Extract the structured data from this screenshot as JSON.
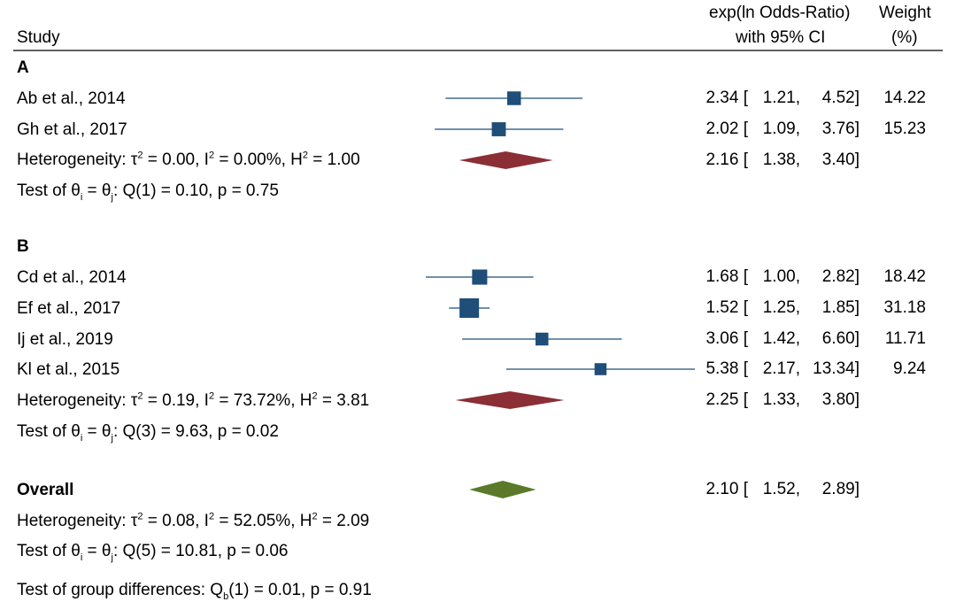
{
  "header": {
    "study_label": "Study",
    "effect_label_line1": "exp(ln Odds-Ratio)",
    "effect_label_line2": "with 95% CI",
    "weight_label_line1": "Weight",
    "weight_label_line2": "(%)"
  },
  "footer": {
    "group_diff_text": "Test of group differences: Q",
    "group_diff_sub": "b",
    "group_diff_rest": "(1) = 0.01, p = 0.91"
  },
  "colors": {
    "study_marker": "#1f4e79",
    "subgroup_diamond": "#8b2e35",
    "overall_diamond": "#5a7a2a"
  },
  "chart_data": {
    "type": "forest",
    "x_scale": "log",
    "xlim": [
      0.9,
      13.34
    ],
    "groups": [
      {
        "label": "A",
        "studies": [
          {
            "name": "Ab et al., 2014",
            "est": 2.34,
            "lo": 1.21,
            "hi": 4.52,
            "est_text": "2.34 [",
            "lo_text": "1.21,",
            "hi_text": "4.52]",
            "weight": 14.22,
            "weight_text": "14.22"
          },
          {
            "name": "Gh et al., 2017",
            "est": 2.02,
            "lo": 1.09,
            "hi": 3.76,
            "est_text": "2.02 [",
            "lo_text": "1.09,",
            "hi_text": "3.76]",
            "weight": 15.23,
            "weight_text": "15.23"
          }
        ],
        "pooled": {
          "est": 2.16,
          "lo": 1.38,
          "hi": 3.4,
          "est_text": "2.16 [",
          "lo_text": "1.38,",
          "hi_text": "3.40]"
        },
        "heterogeneity": {
          "prefix": "Heterogeneity: τ",
          "tau2": " = 0.00, I",
          "i2": " = 0.00%, H",
          "h2": " = 1.00"
        },
        "test": {
          "prefix": "Test of θ",
          "mid": " = θ",
          "rest": ": Q(1) = 0.10, p = 0.75",
          "sub_i": "i",
          "sub_j": "j"
        }
      },
      {
        "label": "B",
        "studies": [
          {
            "name": "Cd et al., 2014",
            "est": 1.68,
            "lo": 1.0,
            "hi": 2.82,
            "est_text": "1.68 [",
            "lo_text": "1.00,",
            "hi_text": "2.82]",
            "weight": 18.42,
            "weight_text": "18.42"
          },
          {
            "name": "Ef et al., 2017",
            "est": 1.52,
            "lo": 1.25,
            "hi": 1.85,
            "est_text": "1.52 [",
            "lo_text": "1.25,",
            "hi_text": "1.85]",
            "weight": 31.18,
            "weight_text": "31.18"
          },
          {
            "name": "Ij et al., 2019",
            "est": 3.06,
            "lo": 1.42,
            "hi": 6.6,
            "est_text": "3.06 [",
            "lo_text": "1.42,",
            "hi_text": "6.60]",
            "weight": 11.71,
            "weight_text": "11.71"
          },
          {
            "name": "Kl et al., 2015",
            "est": 5.38,
            "lo": 2.17,
            "hi": 13.34,
            "est_text": "5.38 [",
            "lo_text": "2.17,",
            "hi_text": "13.34]",
            "weight": 9.24,
            "weight_text": "9.24"
          }
        ],
        "pooled": {
          "est": 2.25,
          "lo": 1.33,
          "hi": 3.8,
          "est_text": "2.25 [",
          "lo_text": "1.33,",
          "hi_text": "3.80]"
        },
        "heterogeneity": {
          "prefix": "Heterogeneity: τ",
          "tau2": " = 0.19, I",
          "i2": " = 73.72%, H",
          "h2": " = 3.81"
        },
        "test": {
          "prefix": "Test of θ",
          "mid": " = θ",
          "rest": ": Q(3) = 9.63, p = 0.02",
          "sub_i": "i",
          "sub_j": "j"
        }
      }
    ],
    "overall": {
      "label": "Overall",
      "est": 2.1,
      "lo": 1.52,
      "hi": 2.89,
      "est_text": "2.10 [",
      "lo_text": "1.52,",
      "hi_text": "2.89]",
      "heterogeneity": {
        "prefix": "Heterogeneity: τ",
        "tau2": " = 0.08, I",
        "i2": " = 52.05%, H",
        "h2": " = 2.09"
      },
      "test": {
        "prefix": "Test of θ",
        "mid": " = θ",
        "rest": ": Q(5) = 10.81, p = 0.06",
        "sub_i": "i",
        "sub_j": "j"
      }
    }
  }
}
